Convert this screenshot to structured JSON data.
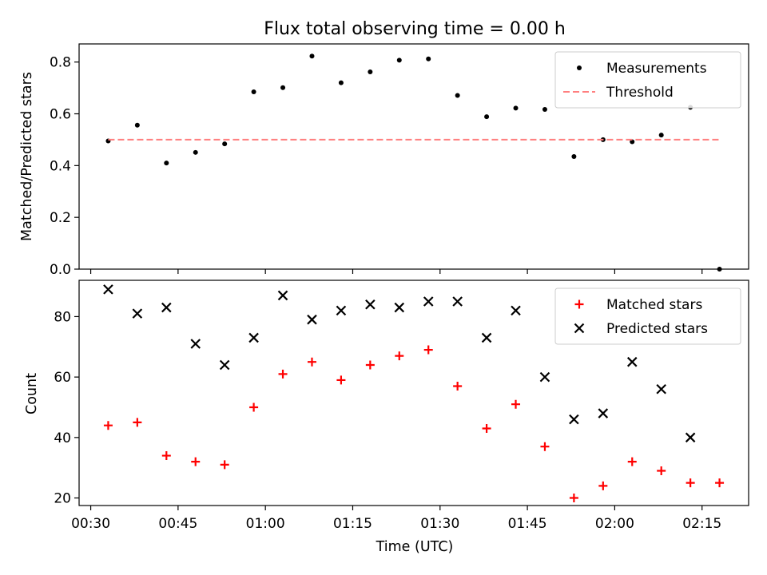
{
  "figure": {
    "title": "Flux total observing time = 0.00 h",
    "xlabel": "Time (UTC)",
    "x_tick_labels": [
      "00:30",
      "00:45",
      "01:00",
      "01:15",
      "01:30",
      "01:45",
      "02:00",
      "02:15"
    ]
  },
  "chart_data": [
    {
      "type": "scatter",
      "title": "Flux total observing time = 0.00 h",
      "xlabel": "",
      "ylabel": "Matched/Predicted stars",
      "xlim": [
        "00:28",
        "02:23"
      ],
      "ylim": [
        0,
        0.87
      ],
      "x_ticks": [
        "00:30",
        "00:45",
        "01:00",
        "01:15",
        "01:30",
        "01:45",
        "02:00",
        "02:15"
      ],
      "y_ticks": [
        "0.0",
        "0.2",
        "0.4",
        "0.6",
        "0.8"
      ],
      "legend": {
        "position": "top-right",
        "entries": [
          "Measurements",
          "Threshold"
        ]
      },
      "series": [
        {
          "name": "Measurements",
          "marker": "dot",
          "color": "#000000",
          "x": [
            "00:33",
            "00:38",
            "00:43",
            "00:48",
            "00:53",
            "00:58",
            "01:03",
            "01:08",
            "01:13",
            "01:18",
            "01:23",
            "01:28",
            "01:33",
            "01:38",
            "01:43",
            "01:48",
            "01:53",
            "01:58",
            "02:03",
            "02:08",
            "02:13",
            "02:18"
          ],
          "y": [
            0.495,
            0.556,
            0.41,
            0.451,
            0.484,
            0.685,
            0.701,
            0.823,
            0.72,
            0.762,
            0.807,
            0.812,
            0.671,
            0.589,
            0.622,
            0.617,
            0.435,
            0.5,
            0.492,
            0.518,
            0.625,
            0.0
          ]
        },
        {
          "name": "Threshold",
          "style": "dashed",
          "color": "#ff7f7f",
          "x": [
            "00:33",
            "02:18"
          ],
          "y": [
            0.5,
            0.5
          ]
        }
      ]
    },
    {
      "type": "scatter",
      "xlabel": "Time (UTC)",
      "ylabel": "Count",
      "xlim": [
        "00:28",
        "02:23"
      ],
      "ylim": [
        17.5,
        92
      ],
      "x_ticks": [
        "00:30",
        "00:45",
        "01:00",
        "01:15",
        "01:30",
        "01:45",
        "02:00",
        "02:15"
      ],
      "y_ticks": [
        "20",
        "40",
        "60",
        "80"
      ],
      "legend": {
        "position": "top-right",
        "entries": [
          "Matched stars",
          "Predicted stars"
        ]
      },
      "series": [
        {
          "name": "Matched stars",
          "marker": "plus",
          "color": "#ff0000",
          "x": [
            "00:33",
            "00:38",
            "00:43",
            "00:48",
            "00:53",
            "00:58",
            "01:03",
            "01:08",
            "01:13",
            "01:18",
            "01:23",
            "01:28",
            "01:33",
            "01:38",
            "01:43",
            "01:48",
            "01:53",
            "01:58",
            "02:03",
            "02:08",
            "02:13",
            "02:18"
          ],
          "y": [
            44,
            45,
            34,
            32,
            31,
            50,
            61,
            65,
            59,
            64,
            67,
            69,
            57,
            43,
            51,
            37,
            20,
            24,
            32,
            29,
            25,
            25
          ]
        },
        {
          "name": "Predicted stars",
          "marker": "x",
          "color": "#000000",
          "x": [
            "00:33",
            "00:38",
            "00:43",
            "00:48",
            "00:53",
            "00:58",
            "01:03",
            "01:08",
            "01:13",
            "01:18",
            "01:23",
            "01:28",
            "01:33",
            "01:38",
            "01:43",
            "01:48",
            "01:53",
            "01:58",
            "02:03",
            "02:08",
            "02:13"
          ],
          "y": [
            89,
            81,
            83,
            71,
            64,
            73,
            87,
            79,
            82,
            84,
            83,
            85,
            85,
            73,
            82,
            60,
            46,
            48,
            65,
            56,
            40
          ]
        }
      ]
    }
  ]
}
